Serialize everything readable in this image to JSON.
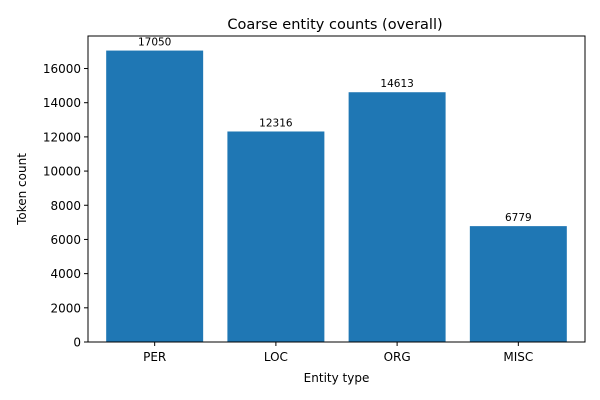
{
  "chart_data": {
    "type": "bar",
    "title": "Coarse entity counts (overall)",
    "xlabel": "Entity type",
    "ylabel": "Token count",
    "categories": [
      "PER",
      "LOC",
      "ORG",
      "MISC"
    ],
    "values": [
      17050,
      12316,
      14613,
      6779
    ],
    "data_labels": [
      "17050",
      "12316",
      "14613",
      "6779"
    ],
    "yticks": [
      0,
      2000,
      4000,
      6000,
      8000,
      10000,
      12000,
      14000,
      16000
    ],
    "ylim": [
      0,
      17902.5
    ],
    "grid": false,
    "legend": "none",
    "colors": {
      "bar": "#1f77b4",
      "axis": "#000000"
    }
  }
}
